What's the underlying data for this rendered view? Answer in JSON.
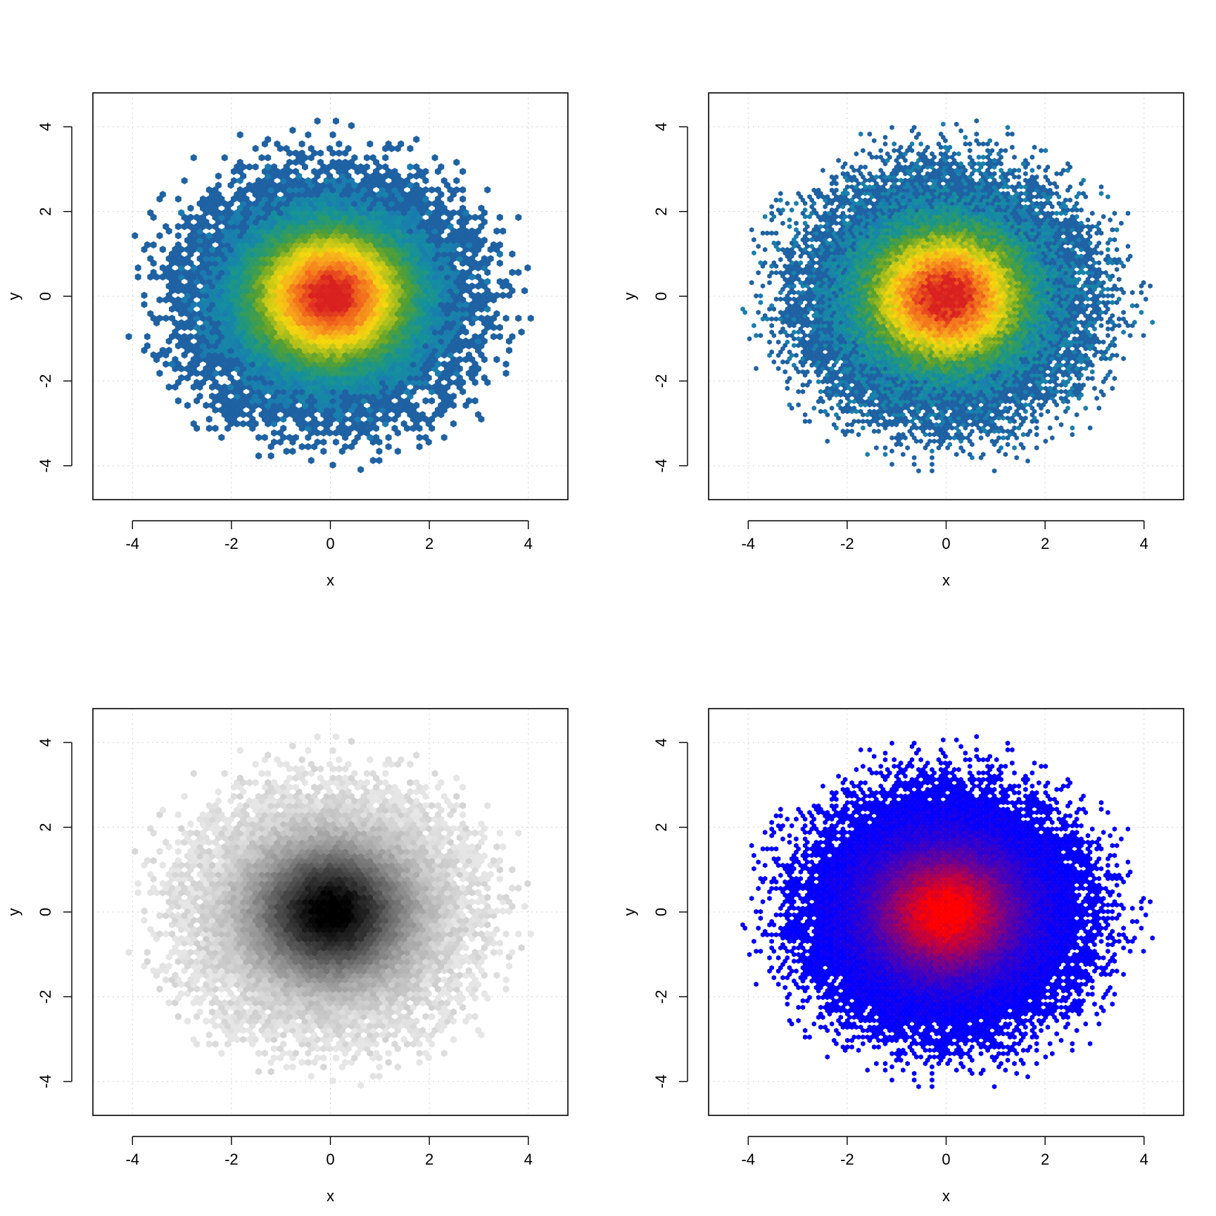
{
  "chart_data": [
    {
      "type": "heatmap",
      "subtype": "hexbin",
      "palette": "blue-teal-green-yellow-orange-red",
      "colors": [
        "#1f62a3",
        "#1a7bb0",
        "#14909e",
        "#2a9a6a",
        "#5aa02c",
        "#b5c21a",
        "#f5d80e",
        "#f7a21e",
        "#f26a1c",
        "#d92120"
      ],
      "xlabel": "x",
      "ylabel": "y",
      "xlim": [
        -4.8,
        4.8
      ],
      "ylim": [
        -4.8,
        4.8
      ],
      "xticks": [
        "-4",
        "-2",
        "0",
        "2",
        "4"
      ],
      "yticks": [
        "-4",
        "-2",
        "0",
        "2",
        "4"
      ],
      "grid": true,
      "distribution": {
        "center_x": 0,
        "center_y": 0,
        "sd": 1,
        "radius_max": 4.2
      },
      "bin_size": "coarse"
    },
    {
      "type": "heatmap",
      "subtype": "hexbin",
      "palette": "blue-teal-green-yellow-orange-red",
      "colors": [
        "#1f62a3",
        "#1a7bb0",
        "#14909e",
        "#2a9a6a",
        "#5aa02c",
        "#b5c21a",
        "#f5d80e",
        "#f7a21e",
        "#f26a1c",
        "#d92120"
      ],
      "xlabel": "x",
      "ylabel": "y",
      "xlim": [
        -4.8,
        4.8
      ],
      "ylim": [
        -4.8,
        4.8
      ],
      "xticks": [
        "-4",
        "-2",
        "0",
        "2",
        "4"
      ],
      "yticks": [
        "-4",
        "-2",
        "0",
        "2",
        "4"
      ],
      "grid": true,
      "distribution": {
        "center_x": 0,
        "center_y": 0,
        "sd": 1,
        "radius_max": 4.2
      },
      "bin_size": "fine"
    },
    {
      "type": "heatmap",
      "subtype": "hexbin",
      "palette": "grey",
      "colors": [
        "#e6e6e6",
        "#000000"
      ],
      "xlabel": "x",
      "ylabel": "y",
      "xlim": [
        -4.8,
        4.8
      ],
      "ylim": [
        -4.8,
        4.8
      ],
      "xticks": [
        "-4",
        "-2",
        "0",
        "2",
        "4"
      ],
      "yticks": [
        "-4",
        "-2",
        "0",
        "2",
        "4"
      ],
      "grid": true,
      "distribution": {
        "center_x": 0,
        "center_y": 0,
        "sd": 1,
        "radius_max": 4.2
      },
      "bin_size": "coarse"
    },
    {
      "type": "heatmap",
      "subtype": "hexbin",
      "palette": "blue-red",
      "colors": [
        "#0000ff",
        "#ff0000"
      ],
      "xlabel": "x",
      "ylabel": "y",
      "xlim": [
        -4.8,
        4.8
      ],
      "ylim": [
        -4.8,
        4.8
      ],
      "xticks": [
        "-4",
        "-2",
        "0",
        "2",
        "4"
      ],
      "yticks": [
        "-4",
        "-2",
        "0",
        "2",
        "4"
      ],
      "grid": true,
      "distribution": {
        "center_x": 0,
        "center_y": 0,
        "sd": 1,
        "radius_max": 4.2
      },
      "bin_size": "fine"
    }
  ]
}
